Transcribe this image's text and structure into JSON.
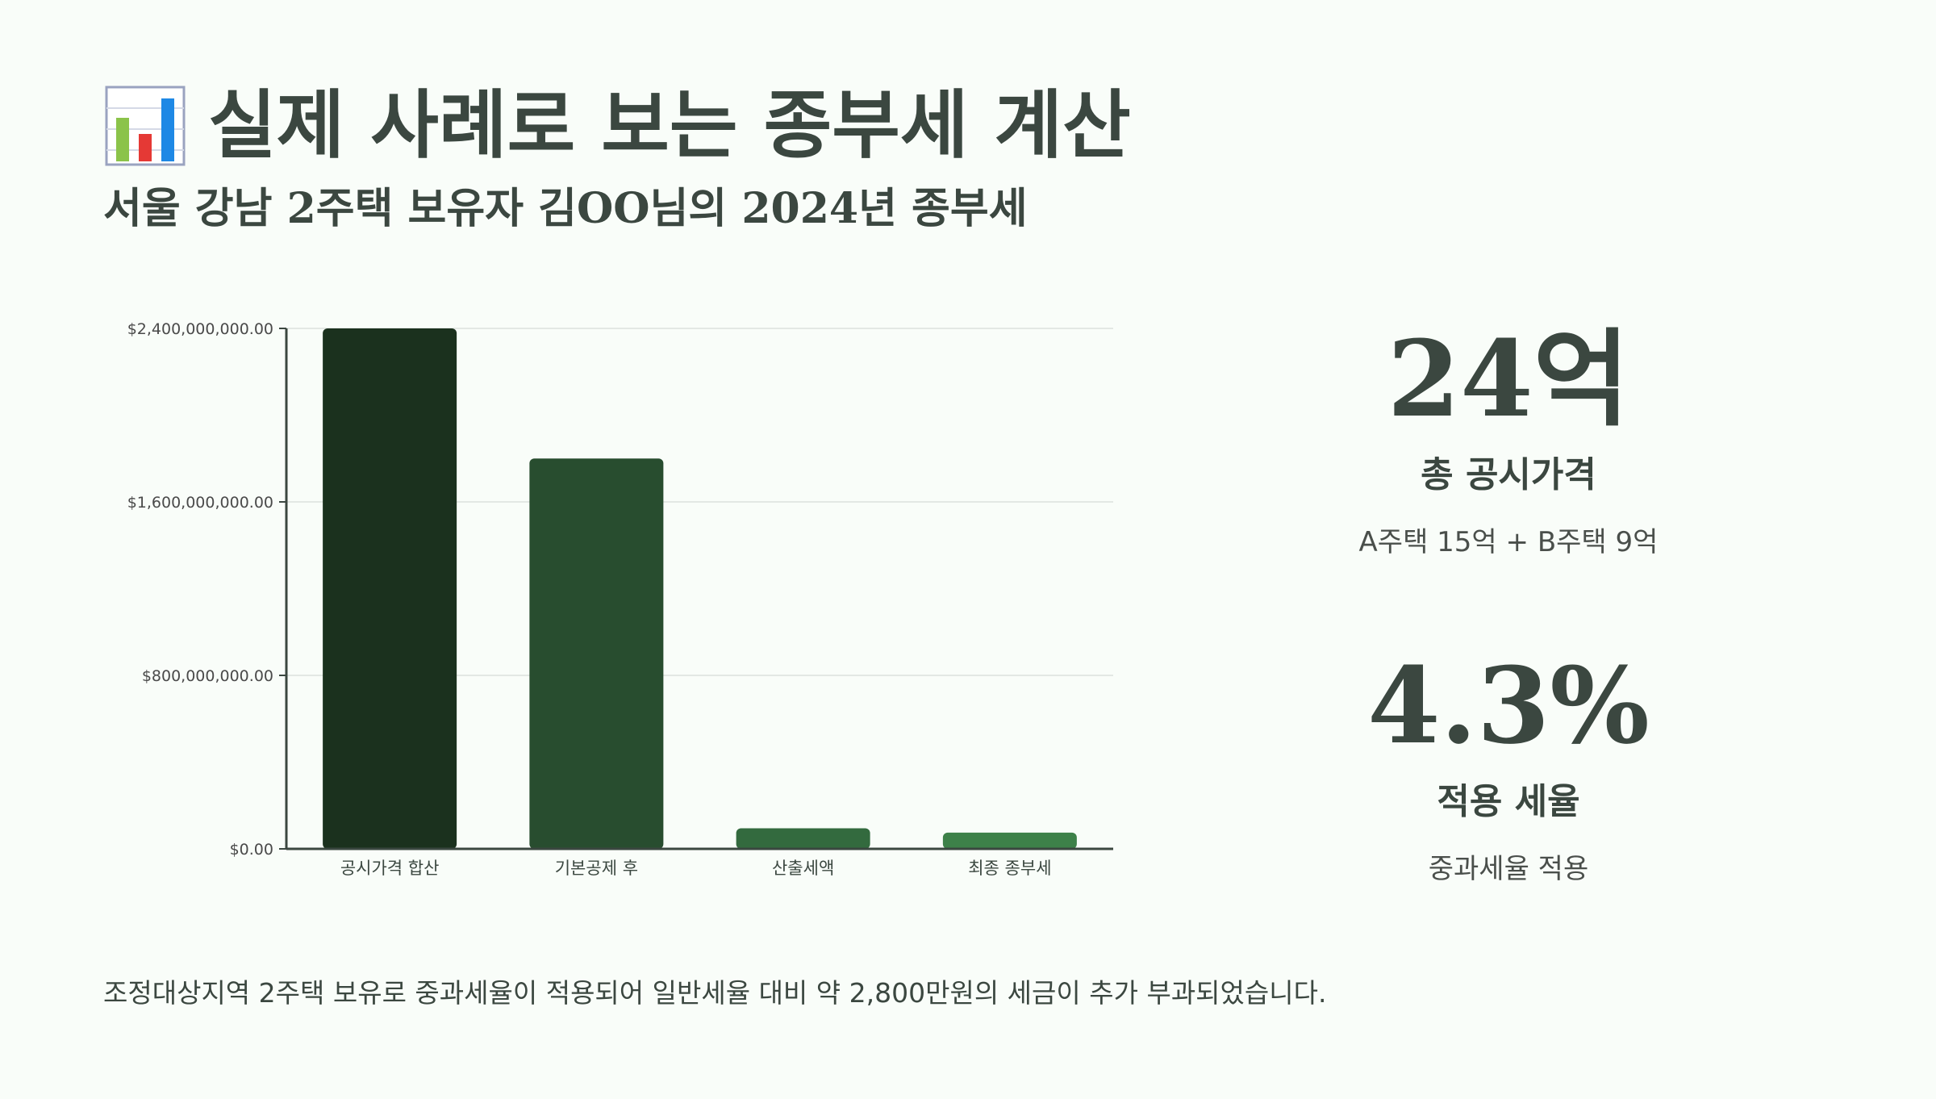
{
  "header": {
    "title": "실제 사례로 보는 종부세 계산",
    "subtitle": "서울 강남 2주택 보유자 김OO님의 2024년 종부세",
    "title_icon": "bar-chart-icon"
  },
  "chart_data": {
    "type": "bar",
    "title": "",
    "xlabel": "",
    "ylabel": "",
    "categories": [
      "공시가격 합산",
      "기본공제 후",
      "산출세액",
      "최종 종부세"
    ],
    "values": [
      2400000000,
      1800000000,
      95000000,
      75000000
    ],
    "ylim": [
      0,
      2400000000
    ],
    "yticks": [
      0,
      800000000,
      1600000000,
      2400000000
    ],
    "ytick_labels": [
      "$0.00",
      "$800,000,000.00",
      "$1,600,000,000.00",
      "$2,400,000,000.00"
    ],
    "grid": true,
    "legend": "none",
    "colors": [
      "#1b311e",
      "#284d2f",
      "#336a3e",
      "#3d8149"
    ],
    "axis_color": "#3b4740",
    "grid_color": "#e3e8e4"
  },
  "stats": [
    {
      "value": "24억",
      "label": "총 공시가격",
      "desc": "A주택 15억 + B주택 9억"
    },
    {
      "value": "4.3%",
      "label": "적용 세율",
      "desc": "중과세율 적용"
    }
  ],
  "note": "조정대상지역 2주택 보유로 중과세율이 적용되어 일반세율 대비 약 2,800만원의 세금이 추가 부과되었습니다."
}
